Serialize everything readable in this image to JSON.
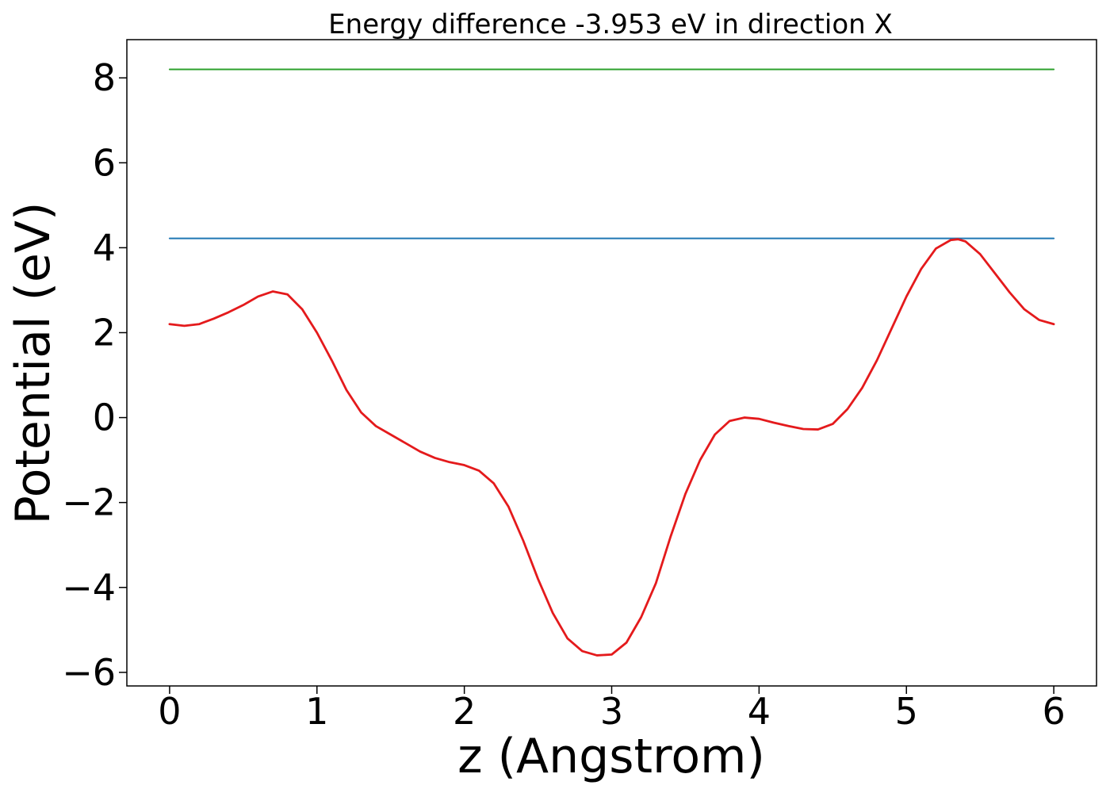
{
  "chart_data": {
    "type": "line",
    "title": "Energy difference -3.953 eV in direction X",
    "xlabel": "z (Angstrom)",
    "ylabel": "Potential (eV)",
    "xlim": [
      -0.29,
      6.29
    ],
    "ylim": [
      -6.32,
      8.9
    ],
    "xticks": [
      0,
      1,
      2,
      3,
      4,
      5,
      6
    ],
    "xtick_labels": [
      "0",
      "1",
      "2",
      "3",
      "4",
      "5",
      "6"
    ],
    "yticks": [
      -6,
      -4,
      -2,
      0,
      2,
      4,
      6,
      8
    ],
    "ytick_labels": [
      "−6",
      "−4",
      "−2",
      "0",
      "2",
      "4",
      "6",
      "8"
    ],
    "grid": false,
    "series": [
      {
        "color": "#2ca02c",
        "x": [
          0,
          6
        ],
        "y": [
          8.2,
          8.2
        ]
      },
      {
        "color": "#1f77b4",
        "x": [
          0,
          6
        ],
        "y": [
          4.22,
          4.22
        ]
      },
      {
        "color": "#e41a1c",
        "x": [
          0.0,
          0.1,
          0.2,
          0.3,
          0.4,
          0.5,
          0.6,
          0.7,
          0.8,
          0.9,
          1.0,
          1.1,
          1.2,
          1.3,
          1.4,
          1.5,
          1.6,
          1.7,
          1.8,
          1.9,
          2.0,
          2.1,
          2.2,
          2.3,
          2.4,
          2.5,
          2.6,
          2.7,
          2.8,
          2.9,
          3.0,
          3.1,
          3.2,
          3.3,
          3.4,
          3.5,
          3.6,
          3.7,
          3.8,
          3.9,
          4.0,
          4.1,
          4.2,
          4.3,
          4.4,
          4.5,
          4.6,
          4.7,
          4.8,
          4.9,
          5.0,
          5.1,
          5.2,
          5.3,
          5.35,
          5.4,
          5.5,
          5.6,
          5.7,
          5.8,
          5.9,
          6.0
        ],
        "y": [
          2.2,
          2.16,
          2.2,
          2.33,
          2.48,
          2.65,
          2.85,
          2.97,
          2.9,
          2.55,
          2.0,
          1.35,
          0.65,
          0.12,
          -0.2,
          -0.4,
          -0.6,
          -0.8,
          -0.95,
          -1.05,
          -1.12,
          -1.25,
          -1.55,
          -2.1,
          -2.9,
          -3.8,
          -4.6,
          -5.2,
          -5.5,
          -5.6,
          -5.58,
          -5.3,
          -4.7,
          -3.9,
          -2.8,
          -1.8,
          -1.0,
          -0.4,
          -0.08,
          0.0,
          -0.03,
          -0.12,
          -0.2,
          -0.27,
          -0.28,
          -0.15,
          0.2,
          0.7,
          1.35,
          2.1,
          2.85,
          3.5,
          3.98,
          4.18,
          4.2,
          4.15,
          3.85,
          3.4,
          2.95,
          2.55,
          2.3,
          2.2
        ]
      }
    ]
  }
}
